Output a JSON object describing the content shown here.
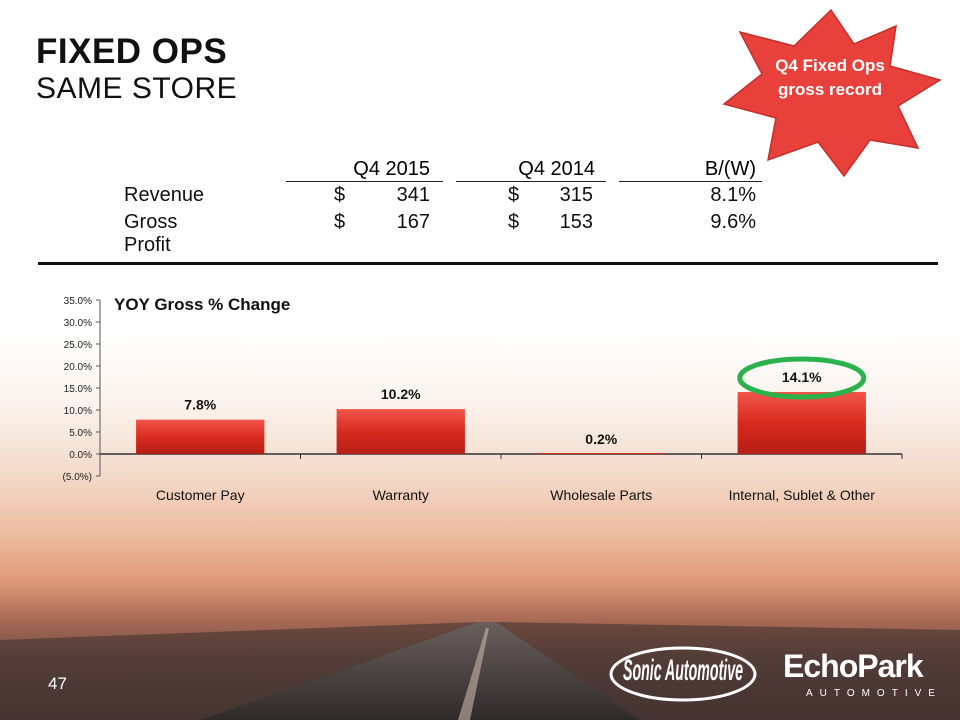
{
  "header": {
    "title": "FIXED OPS",
    "subtitle": "SAME STORE"
  },
  "callout": {
    "text": "Q4 Fixed Ops gross record",
    "color": "#e8403a"
  },
  "table": {
    "columns": [
      "Q4 2015",
      "Q4 2014",
      "B/(W)"
    ],
    "rows": [
      {
        "label": "Revenue",
        "cur_symbol_a": "$",
        "q4_2015": "341",
        "cur_symbol_b": "$",
        "q4_2014": "315",
        "change": "8.1%"
      },
      {
        "label": "Gross Profit",
        "cur_symbol_a": "$",
        "q4_2015": "167",
        "cur_symbol_b": "$",
        "q4_2014": "153",
        "change": "9.6%"
      }
    ]
  },
  "chart_data": {
    "type": "bar",
    "title": "YOY Gross % Change",
    "categories": [
      "Customer Pay",
      "Warranty",
      "Wholesale Parts",
      "Internal, Sublet & Other"
    ],
    "values": [
      7.8,
      10.2,
      0.2,
      14.1
    ],
    "data_labels": [
      "7.8%",
      "10.2%",
      "0.2%",
      "14.1%"
    ],
    "ylim": [
      -5,
      35
    ],
    "yticks": [
      35,
      30,
      25,
      20,
      15,
      10,
      5,
      0,
      -5
    ],
    "ytick_labels": [
      "35.0%",
      "30.0%",
      "25.0%",
      "20.0%",
      "15.0%",
      "10.0%",
      "5.0%",
      "0.0%",
      "(5.0%)"
    ],
    "highlight_index": 3,
    "bar_color": "#d92a1f",
    "highlight_color": "#2bb24c"
  },
  "footer": {
    "page_number": "47",
    "logo_sonic": "Sonic Automotive",
    "logo_echo": "EchoPark",
    "logo_echo_sub": "AUTOMOTIVE"
  }
}
